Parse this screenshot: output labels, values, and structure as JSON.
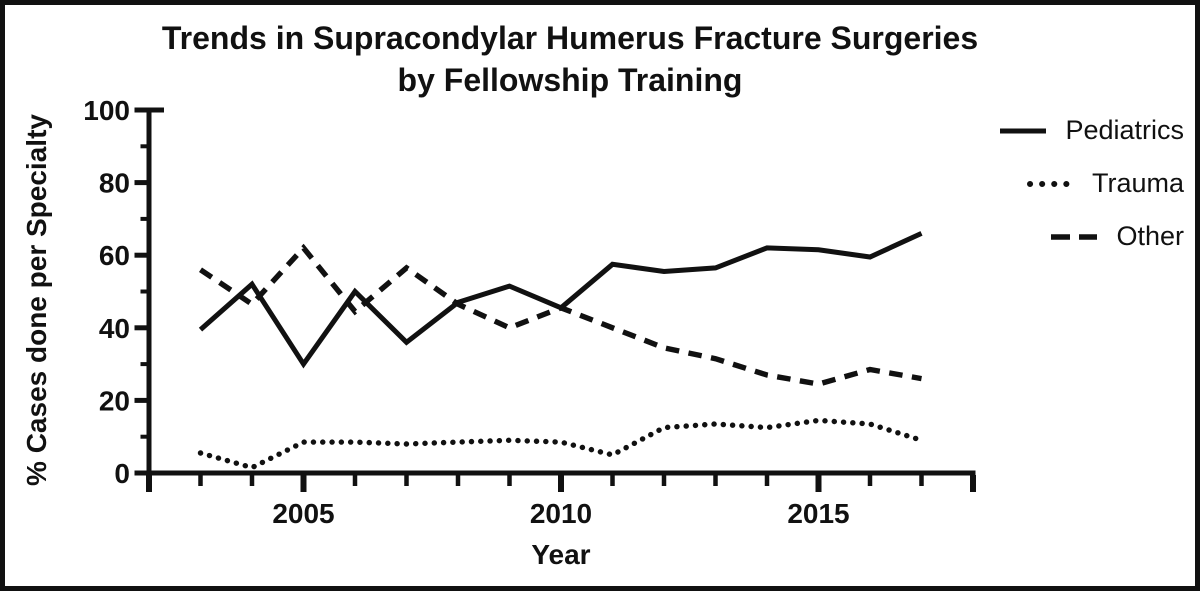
{
  "title": {
    "line1": "Trends in Supracondylar Humerus Fracture Surgeries",
    "line2": "by Fellowship Training"
  },
  "legend": {
    "items": [
      {
        "label": "Pediatrics",
        "style": "solid"
      },
      {
        "label": "Trauma",
        "style": "dotted"
      },
      {
        "label": "Other",
        "style": "dashed"
      }
    ]
  },
  "chart_data": {
    "type": "line",
    "title": "Trends in Supracondylar Humerus Fracture Surgeries by Fellowship Training",
    "xlabel": "Year",
    "ylabel": "% Cases done per Specialty",
    "x": [
      2003,
      2004,
      2005,
      2006,
      2007,
      2008,
      2009,
      2010,
      2011,
      2012,
      2013,
      2014,
      2015,
      2016,
      2017
    ],
    "series": [
      {
        "name": "Pediatrics",
        "line_style": "solid",
        "values": [
          39.5,
          52,
          30,
          50,
          36,
          47,
          51.5,
          45.5,
          57.5,
          55.5,
          56.5,
          62,
          61.5,
          59.5,
          66
        ]
      },
      {
        "name": "Trauma",
        "line_style": "dotted",
        "values": [
          5.5,
          1.5,
          8.5,
          8.5,
          8,
          8.5,
          9,
          8.5,
          5,
          12.5,
          13.5,
          12.5,
          14.5,
          13.5,
          9
        ]
      },
      {
        "name": "Other",
        "line_style": "dashed",
        "values": [
          56,
          46.5,
          62,
          44.5,
          56.5,
          46.5,
          40,
          45.5,
          40,
          34.5,
          31.5,
          27,
          24.5,
          28.5,
          26
        ]
      }
    ],
    "xlim": [
      2002,
      2018
    ],
    "ylim": [
      0,
      100
    ],
    "x_major_ticks": [
      2005,
      2010,
      2015
    ],
    "x_minor_tick_every": 1,
    "y_major_ticks": [
      0,
      20,
      40,
      60,
      80,
      100
    ],
    "y_minor_ticks": [
      10,
      30,
      50,
      70,
      90
    ],
    "grid": false,
    "legend_position": "top-right",
    "line_color": "#111111",
    "background": "#ffffff"
  }
}
